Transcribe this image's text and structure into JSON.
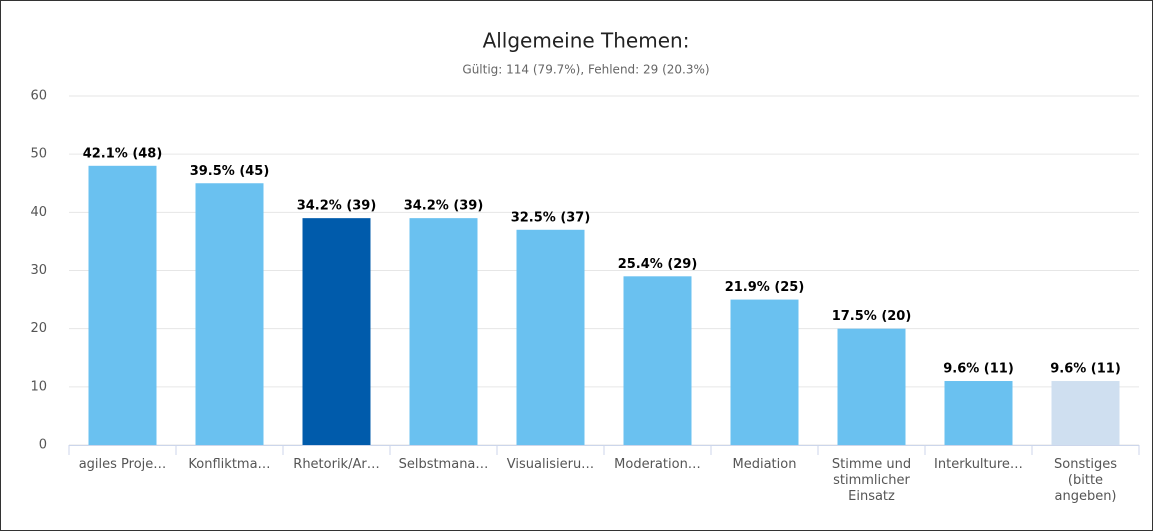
{
  "chart_data": {
    "type": "bar",
    "title": "Allgemeine Themen:",
    "subtitle": "Gültig: 114 (79.7%), Fehlend: 29 (20.3%)",
    "categories": [
      "agiles Proje…",
      "Konfliktma…",
      "Rhetorik/Ar…",
      "Selbstmana…",
      "Visualisieru…",
      "Moderation…",
      "Mediation",
      "Stimme und stimmlicher Einsatz",
      "Interkulture…",
      "Sonstiges (bitte angeben)"
    ],
    "values": [
      48,
      45,
      39,
      39,
      37,
      29,
      25,
      20,
      11,
      11
    ],
    "value_labels": [
      "42.1% (48)",
      "39.5% (45)",
      "34.2% (39)",
      "34.2% (39)",
      "32.5% (37)",
      "25.4% (29)",
      "21.9% (25)",
      "17.5% (20)",
      "9.6% (11)",
      "9.6% (11)"
    ],
    "colors": [
      "#6ac1f0",
      "#6ac1f0",
      "#005bab",
      "#6ac1f0",
      "#6ac1f0",
      "#6ac1f0",
      "#6ac1f0",
      "#6ac1f0",
      "#6ac1f0",
      "#cfdff0"
    ],
    "ylim": [
      0,
      60
    ],
    "yticks": [
      0,
      10,
      20,
      30,
      40,
      50,
      60
    ],
    "grid": true
  }
}
